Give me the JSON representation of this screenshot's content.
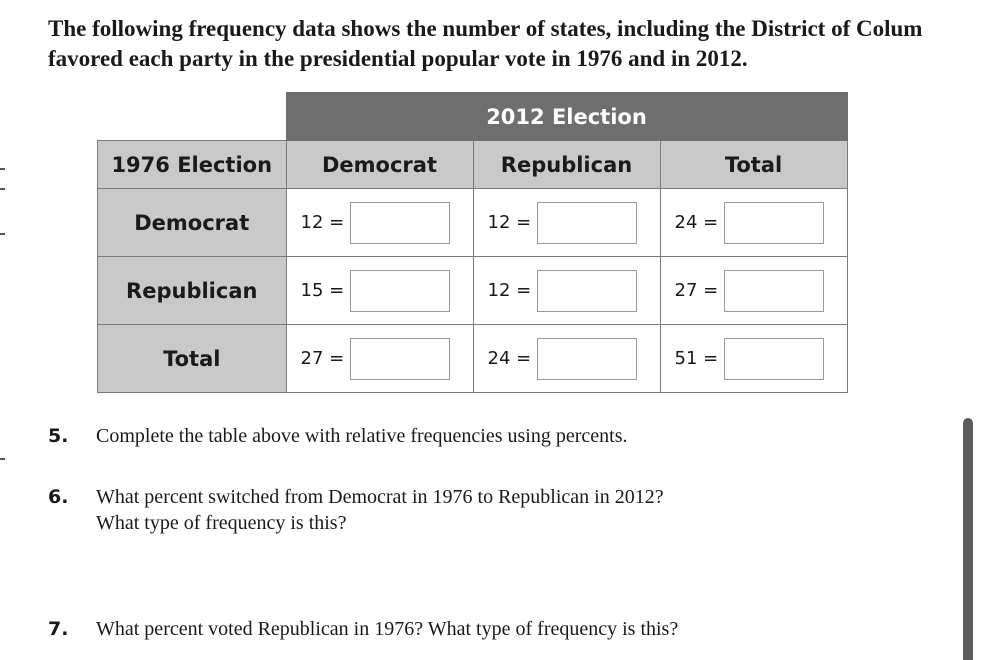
{
  "intro": {
    "line1": "The following frequency data shows the number of states, including the District of Colum",
    "line2": "favored each party in the presidential popular vote in 1976 and in 2012."
  },
  "table": {
    "group_header": "2012 Election",
    "row_axis_label": "1976 Election",
    "columns": [
      "Democrat",
      "Republican",
      "Total"
    ],
    "rows": [
      {
        "label": "Democrat",
        "cells": [
          "12 =",
          "12 =",
          "24 ="
        ]
      },
      {
        "label": "Republican",
        "cells": [
          "15 =",
          "12 =",
          "27 ="
        ]
      },
      {
        "label": "Total",
        "cells": [
          "27 =",
          "24 =",
          "51 ="
        ]
      }
    ]
  },
  "questions": [
    {
      "number": "5.",
      "lines": [
        "Complete the table above with relative frequencies using percents."
      ]
    },
    {
      "number": "6.",
      "lines": [
        "What percent switched from Democrat in 1976 to Republican in 2012?",
        "What type of frequency is this?"
      ]
    },
    {
      "number": "7.",
      "lines": [
        "What percent voted Republican in 1976? What type of frequency is this?"
      ]
    }
  ]
}
